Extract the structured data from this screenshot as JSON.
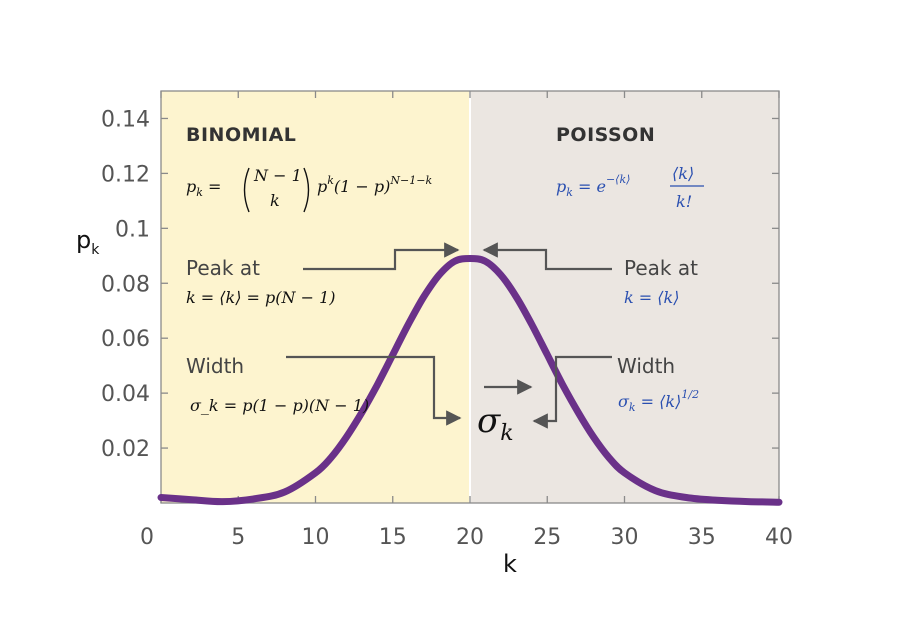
{
  "chart_data": {
    "type": "line",
    "xlabel": "k",
    "ylabel": "p",
    "ylabel_sub": "k",
    "xlim": [
      0,
      40
    ],
    "ylim": [
      0,
      0.15
    ],
    "x_ticks": [
      "0",
      "5",
      "10",
      "15",
      "20",
      "25",
      "30",
      "35",
      "40"
    ],
    "y_ticks": [
      "0.02",
      "0.04",
      "0.06",
      "0.08",
      "0.1",
      "0.12",
      "0.14"
    ],
    "y_tick_values": [
      0.02,
      0.04,
      0.06,
      0.08,
      0.1,
      0.12,
      0.14
    ],
    "regions": [
      {
        "label": "BINOMIAL",
        "x_range": [
          0,
          20
        ],
        "color": "#fdf4cf"
      },
      {
        "label": "POISSON",
        "x_range": [
          20,
          40
        ],
        "color": "#ebe6e1"
      }
    ],
    "curve_color": "#6a3189",
    "series": [
      {
        "x": [
          0,
          2,
          4,
          6,
          8,
          10,
          11,
          12,
          13,
          14,
          15,
          16,
          17,
          18,
          19,
          20,
          21,
          22,
          23,
          24,
          25,
          26,
          27,
          28,
          29,
          30,
          32,
          34,
          36,
          38,
          40
        ],
        "values": [
          0.002,
          0.0012,
          0.0005,
          0.0015,
          0.004,
          0.011,
          0.0165,
          0.024,
          0.033,
          0.043,
          0.054,
          0.065,
          0.075,
          0.083,
          0.088,
          0.089,
          0.088,
          0.083,
          0.075,
          0.065,
          0.054,
          0.043,
          0.033,
          0.024,
          0.0165,
          0.011,
          0.0045,
          0.002,
          0.001,
          0.0005,
          0.0003
        ]
      }
    ],
    "annotations": {
      "binomial": {
        "title": "BINOMIAL",
        "formula": "p_k = (N−1 choose k) p^k (1−p)^(N−1−k)",
        "peak_label": "Peak at",
        "peak_formula": "k = ⟨k⟩ = p(N − 1)",
        "width_label": "Width",
        "width_formula": "σ_k = p(1 − p)(N − 1)"
      },
      "poisson": {
        "title": "POISSON",
        "formula": "p_k = e^−⟨k⟩ ⟨k⟩/k!",
        "peak_label": "Peak at",
        "peak_formula": "k = ⟨k⟩",
        "width_label": "Width",
        "width_formula": "σ_k = ⟨k⟩^1/2"
      },
      "sigma": "σk"
    }
  }
}
